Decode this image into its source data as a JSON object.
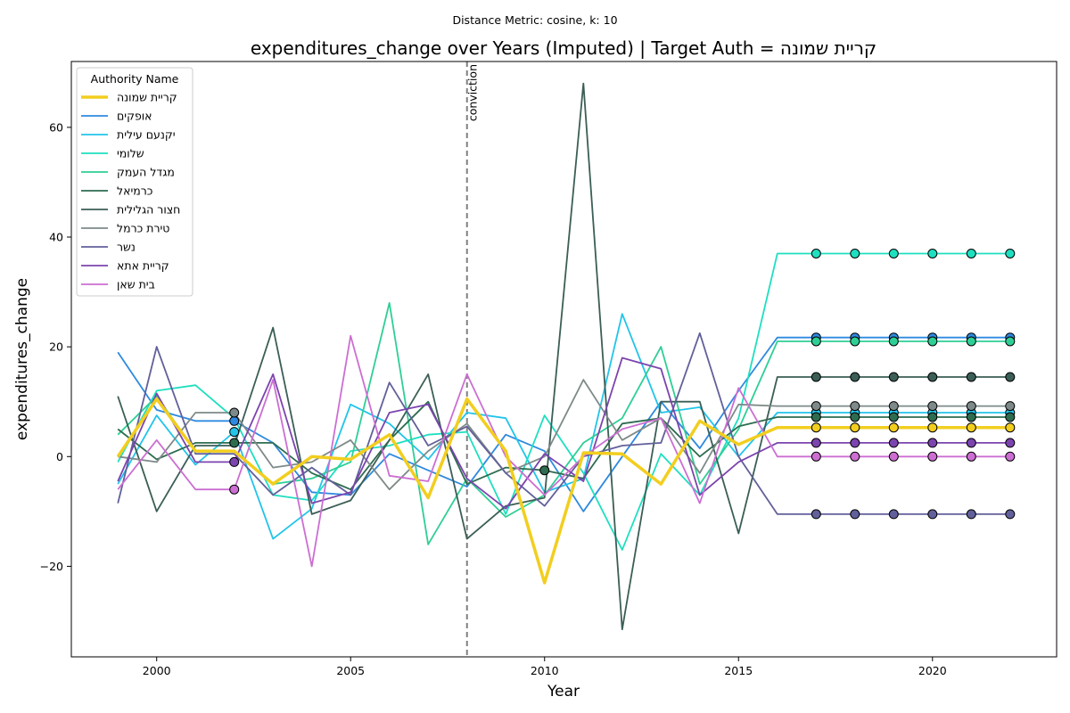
{
  "chart_data": {
    "type": "line",
    "suptitle": "Distance Metric: cosine, k: 10",
    "title": "expenditures_change over Years (Imputed) | Target Auth = קריית שמונה",
    "xlabel": "Year",
    "ylabel": "expenditures_change",
    "xlim": [
      1997.8,
      2023.2
    ],
    "ylim": [
      -36.5,
      72
    ],
    "xticks": [
      2000,
      2005,
      2010,
      2015,
      2020
    ],
    "yticks": [
      -20,
      0,
      20,
      40,
      60
    ],
    "grid": false,
    "legend_title": "Authority Name",
    "legend_position": "top-left",
    "annotation": {
      "x": 2008,
      "label": "conviction"
    },
    "years": [
      1999,
      2000,
      2001,
      2002,
      2003,
      2004,
      2005,
      2006,
      2007,
      2008,
      2009,
      2010,
      2011,
      2012,
      2013,
      2014,
      2015,
      2016,
      2017,
      2018,
      2019,
      2020,
      2021,
      2022
    ],
    "series": [
      {
        "name": "קריית שמונה",
        "color": "#f2ce1e",
        "target": true,
        "values": [
          0,
          10.5,
          1,
          1,
          -5,
          0,
          -0.5,
          4,
          -7.5,
          10.5,
          1,
          -23,
          0.7,
          0.5,
          -5,
          6.5,
          2.2,
          5.3,
          5.3,
          5.3,
          5.3,
          5.3,
          5.3,
          5.3
        ],
        "imputed_years": [
          2017,
          2018,
          2019,
          2020,
          2021,
          2022
        ]
      },
      {
        "name": "אופקים",
        "color": "#2e8ae0",
        "values": [
          19,
          8.5,
          6.5,
          6.5,
          2.5,
          -6.5,
          -7,
          0.5,
          -2.5,
          -5.5,
          4,
          1,
          -10,
          0,
          10,
          1.5,
          12,
          21.7,
          21.7,
          21.7,
          21.7,
          21.7,
          21.7,
          21.7
        ],
        "imputed_years": [
          2002,
          2017,
          2018,
          2019,
          2020,
          2021,
          2022
        ]
      },
      {
        "name": "יקנעם עילית",
        "color": "#22c4ea",
        "values": [
          -5,
          7.5,
          -1.5,
          4.5,
          -15,
          -9.5,
          9.5,
          6,
          -0.5,
          8,
          7,
          -6.5,
          -4,
          26,
          8,
          9,
          0,
          8,
          8,
          8,
          8,
          8,
          8,
          8
        ],
        "imputed_years": [
          2002,
          2017,
          2018,
          2019,
          2020,
          2021,
          2022
        ]
      },
      {
        "name": "שלומי",
        "color": "#1edfc0",
        "values": [
          -1,
          12,
          13,
          7,
          -7,
          -8,
          1,
          2,
          4,
          4.5,
          -10.5,
          7.5,
          -3,
          -17,
          0.5,
          -7,
          7,
          37,
          37,
          37,
          37,
          37,
          37,
          37
        ],
        "imputed_years": [
          2017,
          2018,
          2019,
          2020,
          2021,
          2022
        ]
      },
      {
        "name": "מגדל העמק",
        "color": "#2ecf95",
        "values": [
          4,
          11,
          1,
          1,
          -5,
          -4,
          -1,
          28,
          -16,
          -4,
          -11,
          -7,
          2.5,
          7,
          20,
          -5,
          5,
          21,
          21,
          21,
          21,
          21,
          21,
          21
        ],
        "imputed_years": [
          2017,
          2018,
          2019,
          2020,
          2021,
          2022
        ]
      },
      {
        "name": "כרמיאל",
        "color": "#2e6c50",
        "values": [
          5,
          -0.5,
          2.5,
          2.5,
          2.5,
          -3,
          -6,
          3,
          10,
          -5,
          -2,
          -2.5,
          -4,
          6,
          7,
          0,
          5.5,
          7.2,
          7.2,
          7.2,
          7.2,
          7.2,
          7.2,
          7.2
        ],
        "imputed_years": [
          2002,
          2010,
          2017,
          2018,
          2019,
          2020,
          2021,
          2022
        ]
      },
      {
        "name": "חצור הגלילית",
        "color": "#3b5e56",
        "values": [
          11,
          -10,
          2,
          2,
          23.5,
          -10.5,
          -8,
          3,
          15,
          -15,
          -9,
          -7.5,
          68,
          -31.5,
          10,
          10,
          -14,
          14.5,
          14.5,
          14.5,
          14.5,
          14.5,
          14.5,
          14.5
        ],
        "imputed_years": [
          2017,
          2018,
          2019,
          2020,
          2021,
          2022
        ]
      },
      {
        "name": "טירת כרמל",
        "color": "#7e8a89",
        "values": [
          0,
          -1,
          8,
          8,
          -2,
          -1,
          3,
          -6,
          1,
          6,
          -3,
          0,
          14,
          3,
          7,
          -3,
          9.5,
          9.2,
          9.2,
          9.2,
          9.2,
          9.2,
          9.2,
          9.2
        ],
        "imputed_years": [
          2002,
          2017,
          2018,
          2019,
          2020,
          2021,
          2022
        ]
      },
      {
        "name": "נשר",
        "color": "#62609a",
        "values": [
          -8.5,
          20,
          0.5,
          0.5,
          -7,
          -2,
          -7,
          13.5,
          2,
          5.5,
          -3,
          -9,
          0,
          2,
          2.5,
          22.5,
          0,
          -10.5,
          -10.5,
          -10.5,
          -10.5,
          -10.5,
          -10.5,
          -10.5
        ],
        "imputed_years": [
          2017,
          2018,
          2019,
          2020,
          2021,
          2022
        ]
      },
      {
        "name": "קריית אתא",
        "color": "#7c44ae",
        "values": [
          -4.5,
          11.5,
          -1,
          -1,
          15,
          -8.5,
          -6.5,
          8,
          9.5,
          -4,
          -9.5,
          0.5,
          -4.5,
          18,
          16,
          -7,
          -1,
          2.5,
          2.5,
          2.5,
          2.5,
          2.5,
          2.5,
          2.5
        ],
        "imputed_years": [
          2002,
          2017,
          2018,
          2019,
          2020,
          2021,
          2022
        ]
      },
      {
        "name": "בית שאן",
        "color": "#cc6ed2",
        "values": [
          -6,
          3,
          -6,
          -6,
          14,
          -20,
          22,
          -3.5,
          -4.5,
          15,
          0,
          -7,
          0,
          5,
          7,
          -8.5,
          12.5,
          0,
          0,
          0,
          0,
          0,
          0,
          0
        ],
        "imputed_years": [
          2002,
          2017,
          2018,
          2019,
          2020,
          2021,
          2022
        ]
      }
    ]
  }
}
